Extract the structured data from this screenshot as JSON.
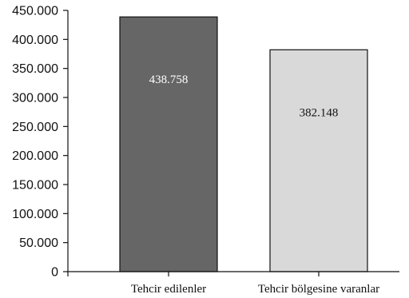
{
  "chart_data": {
    "type": "bar",
    "title": "",
    "xlabel": "",
    "ylabel": "",
    "categories": [
      "Tehcir edilenler",
      "Tehcir bölgesine varanlar"
    ],
    "values": [
      438758,
      382148
    ],
    "data_labels": [
      "438.758",
      "382.148"
    ],
    "ylim": [
      0,
      450000
    ],
    "y_ticks": [
      0,
      50000,
      100000,
      150000,
      200000,
      250000,
      300000,
      350000,
      400000,
      450000
    ],
    "y_tick_labels": [
      "0",
      "50.000",
      "100.000",
      "150.000",
      "200.000",
      "250.000",
      "300.000",
      "350.000",
      "400.000",
      "450.000"
    ],
    "bar_colors": [
      "#666666",
      "#d9d9d9"
    ],
    "label_colors": [
      "#ffffff",
      "#111111"
    ],
    "grid": false,
    "legend": "none"
  }
}
